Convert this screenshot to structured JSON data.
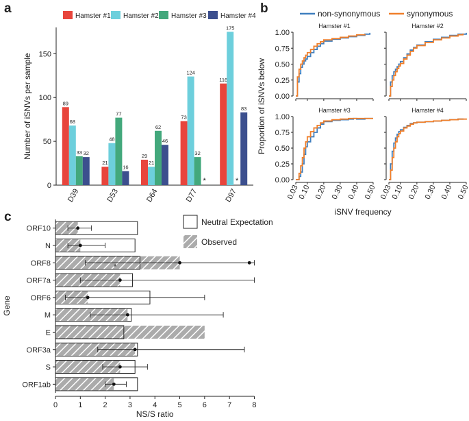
{
  "panels": {
    "a": "a",
    "b": "b",
    "c": "c"
  },
  "chart_data": [
    {
      "type": "bar",
      "panel": "a",
      "ylabel": "Number of iSNVs per sample",
      "xlabel": "",
      "ylim": [
        0,
        180
      ],
      "yticks": [
        0,
        50,
        100,
        150
      ],
      "categories": [
        "D39",
        "D53",
        "D64",
        "D77",
        "D97"
      ],
      "series": [
        {
          "name": "Hamster #1",
          "color": "#e8453c",
          "values": [
            89,
            21,
            29,
            73,
            116
          ],
          "labels": [
            "89",
            "21",
            "29",
            "73",
            "116"
          ]
        },
        {
          "name": "Hamster #2",
          "color": "#6dcfdc",
          "values": [
            68,
            48,
            21,
            124,
            175
          ],
          "labels": [
            "68",
            "48",
            "21",
            "124",
            "175"
          ]
        },
        {
          "name": "Hamster #3",
          "color": "#43a87c",
          "values": [
            33,
            77,
            62,
            32,
            0
          ],
          "labels": [
            "33",
            "77",
            "62",
            "32",
            ""
          ]
        },
        {
          "name": "Hamster #4",
          "color": "#3c4f8e",
          "values": [
            32,
            16,
            46,
            0,
            83
          ],
          "labels": [
            "32",
            "16",
            "46",
            "",
            "83"
          ]
        }
      ],
      "missing_markers": [
        {
          "category": "D77",
          "series": "Hamster #4",
          "label": "*"
        },
        {
          "category": "D97",
          "series": "Hamster #3",
          "label": "*"
        }
      ]
    },
    {
      "type": "line",
      "panel": "b",
      "ylabel": "Proportion of iSNVs below",
      "xlabel": "iSNV frequency",
      "xlim": [
        0.03,
        0.5
      ],
      "ylim": [
        0,
        1
      ],
      "xticks": [
        "0.03",
        "0.10",
        "0.20",
        "0.30",
        "0.40",
        "0.50"
      ],
      "xtick_values": [
        0.03,
        0.1,
        0.2,
        0.3,
        0.4,
        0.5
      ],
      "yticks": [
        "0.00",
        "0.25",
        "0.50",
        "0.75",
        "1.00"
      ],
      "legend": [
        {
          "name": "non-synonymous",
          "color": "#3f7fbf"
        },
        {
          "name": "synonymous",
          "color": "#f07f2a"
        }
      ],
      "subplots": [
        {
          "title": "Hamster #1",
          "series": [
            {
              "name": "non-synonymous",
              "x": [
                0.03,
                0.04,
                0.05,
                0.06,
                0.07,
                0.08,
                0.09,
                0.1,
                0.12,
                0.14,
                0.16,
                0.18,
                0.2,
                0.25,
                0.3,
                0.35,
                0.4,
                0.45,
                0.48
              ],
              "y": [
                0,
                0.22,
                0.35,
                0.45,
                0.5,
                0.55,
                0.58,
                0.62,
                0.68,
                0.73,
                0.78,
                0.82,
                0.86,
                0.89,
                0.91,
                0.93,
                0.95,
                0.97,
                0.99
              ]
            },
            {
              "name": "synonymous",
              "x": [
                0.03,
                0.04,
                0.05,
                0.06,
                0.07,
                0.08,
                0.09,
                0.1,
                0.12,
                0.14,
                0.16,
                0.18,
                0.2,
                0.25,
                0.3,
                0.35,
                0.4,
                0.45
              ],
              "y": [
                0,
                0.3,
                0.42,
                0.5,
                0.55,
                0.6,
                0.64,
                0.68,
                0.73,
                0.78,
                0.82,
                0.85,
                0.88,
                0.9,
                0.92,
                0.94,
                0.96,
                0.97
              ]
            }
          ]
        },
        {
          "title": "Hamster #2",
          "series": [
            {
              "name": "non-synonymous",
              "x": [
                0.03,
                0.04,
                0.05,
                0.06,
                0.07,
                0.08,
                0.09,
                0.1,
                0.12,
                0.14,
                0.16,
                0.18,
                0.2,
                0.25,
                0.3,
                0.35,
                0.4,
                0.45,
                0.5
              ],
              "y": [
                0,
                0.22,
                0.32,
                0.38,
                0.42,
                0.46,
                0.5,
                0.54,
                0.6,
                0.66,
                0.72,
                0.76,
                0.8,
                0.85,
                0.89,
                0.92,
                0.95,
                0.97,
                0.99
              ]
            },
            {
              "name": "synonymous",
              "x": [
                0.03,
                0.04,
                0.05,
                0.06,
                0.07,
                0.08,
                0.09,
                0.1,
                0.12,
                0.14,
                0.16,
                0.18,
                0.2,
                0.25,
                0.3,
                0.35,
                0.4,
                0.45,
                0.48
              ],
              "y": [
                0,
                0.15,
                0.25,
                0.32,
                0.38,
                0.43,
                0.47,
                0.51,
                0.58,
                0.64,
                0.7,
                0.75,
                0.79,
                0.84,
                0.88,
                0.91,
                0.94,
                0.96,
                0.98
              ]
            }
          ]
        },
        {
          "title": "Hamster #3",
          "series": [
            {
              "name": "non-synonymous",
              "x": [
                0.03,
                0.05,
                0.06,
                0.07,
                0.08,
                0.09,
                0.1,
                0.12,
                0.14,
                0.16,
                0.18,
                0.2,
                0.25,
                0.3,
                0.35,
                0.38,
                0.4,
                0.45,
                0.5
              ],
              "y": [
                0,
                0.05,
                0.12,
                0.25,
                0.4,
                0.52,
                0.6,
                0.68,
                0.75,
                0.82,
                0.88,
                0.92,
                0.94,
                0.95,
                0.96,
                0.97,
                0.96,
                0.97,
                0.97
              ]
            },
            {
              "name": "synonymous",
              "x": [
                0.03,
                0.05,
                0.06,
                0.07,
                0.08,
                0.09,
                0.1,
                0.12,
                0.14,
                0.16,
                0.18,
                0.2,
                0.25,
                0.3,
                0.35,
                0.4,
                0.45,
                0.5
              ],
              "y": [
                0,
                0.1,
                0.22,
                0.35,
                0.5,
                0.6,
                0.68,
                0.76,
                0.82,
                0.86,
                0.9,
                0.93,
                0.95,
                0.96,
                0.97,
                0.97,
                0.97,
                0.97
              ]
            }
          ]
        },
        {
          "title": "Hamster #4",
          "series": [
            {
              "name": "non-synonymous",
              "x": [
                0.03,
                0.04,
                0.05,
                0.06,
                0.07,
                0.08,
                0.09,
                0.1,
                0.12,
                0.14,
                0.16,
                0.18,
                0.2,
                0.25,
                0.3,
                0.35,
                0.4,
                0.45,
                0.48
              ],
              "y": [
                0,
                0.25,
                0.45,
                0.58,
                0.66,
                0.72,
                0.76,
                0.79,
                0.83,
                0.86,
                0.89,
                0.9,
                0.91,
                0.92,
                0.93,
                0.94,
                0.95,
                0.96,
                0.97
              ]
            },
            {
              "name": "synonymous",
              "x": [
                0.03,
                0.04,
                0.05,
                0.06,
                0.07,
                0.08,
                0.09,
                0.1,
                0.12,
                0.14,
                0.16,
                0.18,
                0.2,
                0.25,
                0.3,
                0.35,
                0.4,
                0.45,
                0.5
              ],
              "y": [
                0,
                0.15,
                0.35,
                0.5,
                0.6,
                0.68,
                0.73,
                0.77,
                0.82,
                0.85,
                0.88,
                0.9,
                0.91,
                0.92,
                0.93,
                0.94,
                0.95,
                0.96,
                0.97
              ]
            }
          ]
        }
      ]
    },
    {
      "type": "bar",
      "orientation": "horizontal",
      "panel": "c",
      "xlabel": "NS/S ratio",
      "ylabel": "Gene",
      "xlim": [
        0,
        8.4
      ],
      "xticks": [
        0,
        1,
        2,
        3,
        4,
        5,
        6,
        7,
        8
      ],
      "legend": [
        {
          "name": "Neutral Expectation",
          "style": "open"
        },
        {
          "name": "Observed",
          "style": "hatched"
        }
      ],
      "categories": [
        "ORF10",
        "N",
        "ORF8",
        "ORF7a",
        "ORF6",
        "M",
        "E",
        "ORF3a",
        "S",
        "ORF1ab"
      ],
      "neutral_expectation": [
        3.3,
        3.2,
        3.4,
        3.1,
        3.8,
        3.05,
        2.75,
        3.3,
        3.2,
        3.3
      ],
      "observed": [
        0.9,
        1.0,
        5.0,
        2.6,
        1.3,
        2.9,
        6.0,
        3.2,
        2.6,
        2.35
      ],
      "error_low": [
        0.5,
        0.5,
        1.2,
        1.0,
        0.4,
        1.4,
        null,
        1.7,
        1.9,
        2.0
      ],
      "error_high": [
        1.45,
        2.0,
        8.0,
        8.0,
        6.0,
        6.75,
        null,
        7.6,
        3.7,
        2.85
      ],
      "star_marker": {
        "category": "ORF8",
        "x": 2.4,
        "label": "*"
      },
      "extra_points": [
        {
          "category": "ORF8",
          "x": 7.8
        }
      ]
    }
  ]
}
